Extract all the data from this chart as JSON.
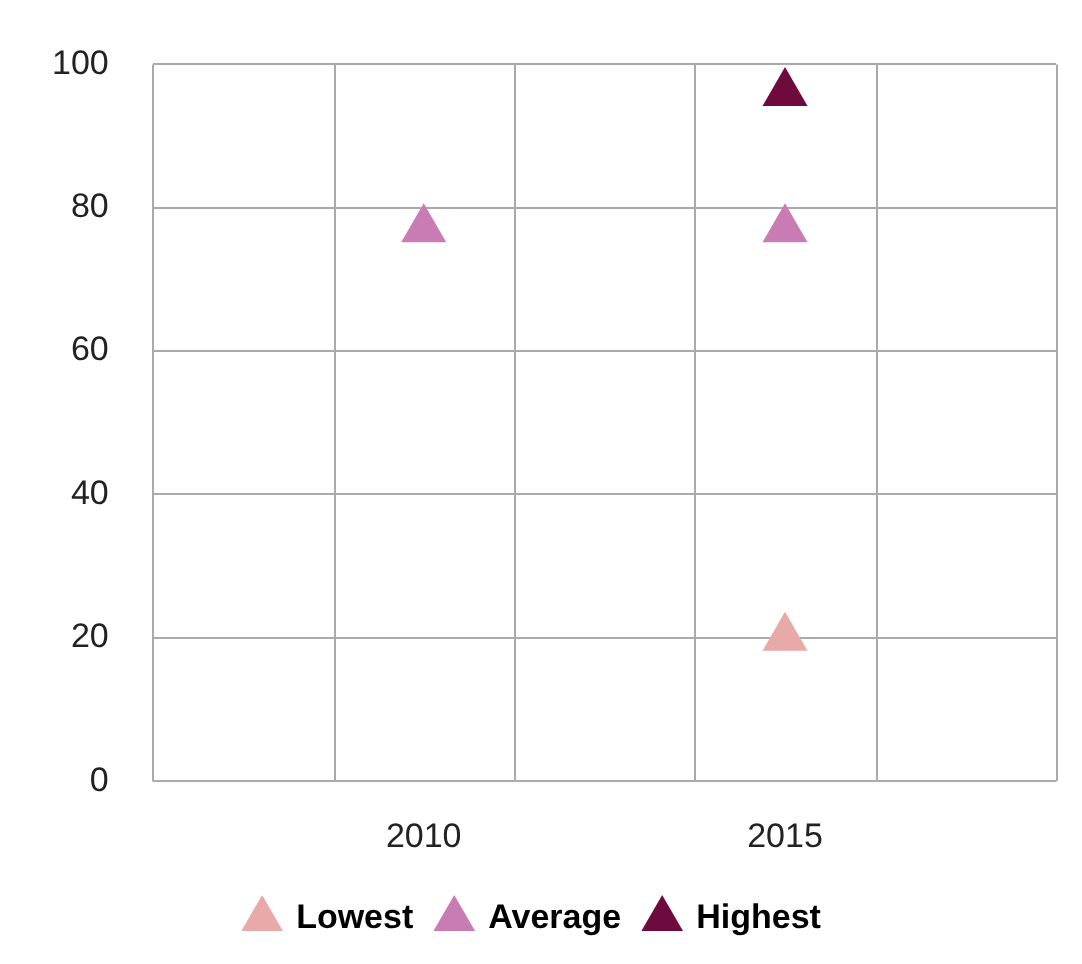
{
  "chart_data": {
    "type": "scatter",
    "marker": "triangle",
    "grid": true,
    "legend": "bottom",
    "categories": [
      null,
      "2010",
      null,
      "2015",
      null
    ],
    "ylim": [
      0,
      100
    ],
    "yticks": [
      0,
      20,
      40,
      60,
      80,
      100
    ],
    "series": [
      {
        "name": "Lowest",
        "color": "#e8aaa8",
        "values": [
          null,
          null,
          null,
          20,
          null
        ]
      },
      {
        "name": "Average",
        "color": "#c97bb4",
        "values": [
          null,
          77,
          null,
          77,
          null
        ]
      },
      {
        "name": "Highest",
        "color": "#6e0a3d",
        "values": [
          null,
          null,
          null,
          96,
          null
        ]
      }
    ]
  }
}
